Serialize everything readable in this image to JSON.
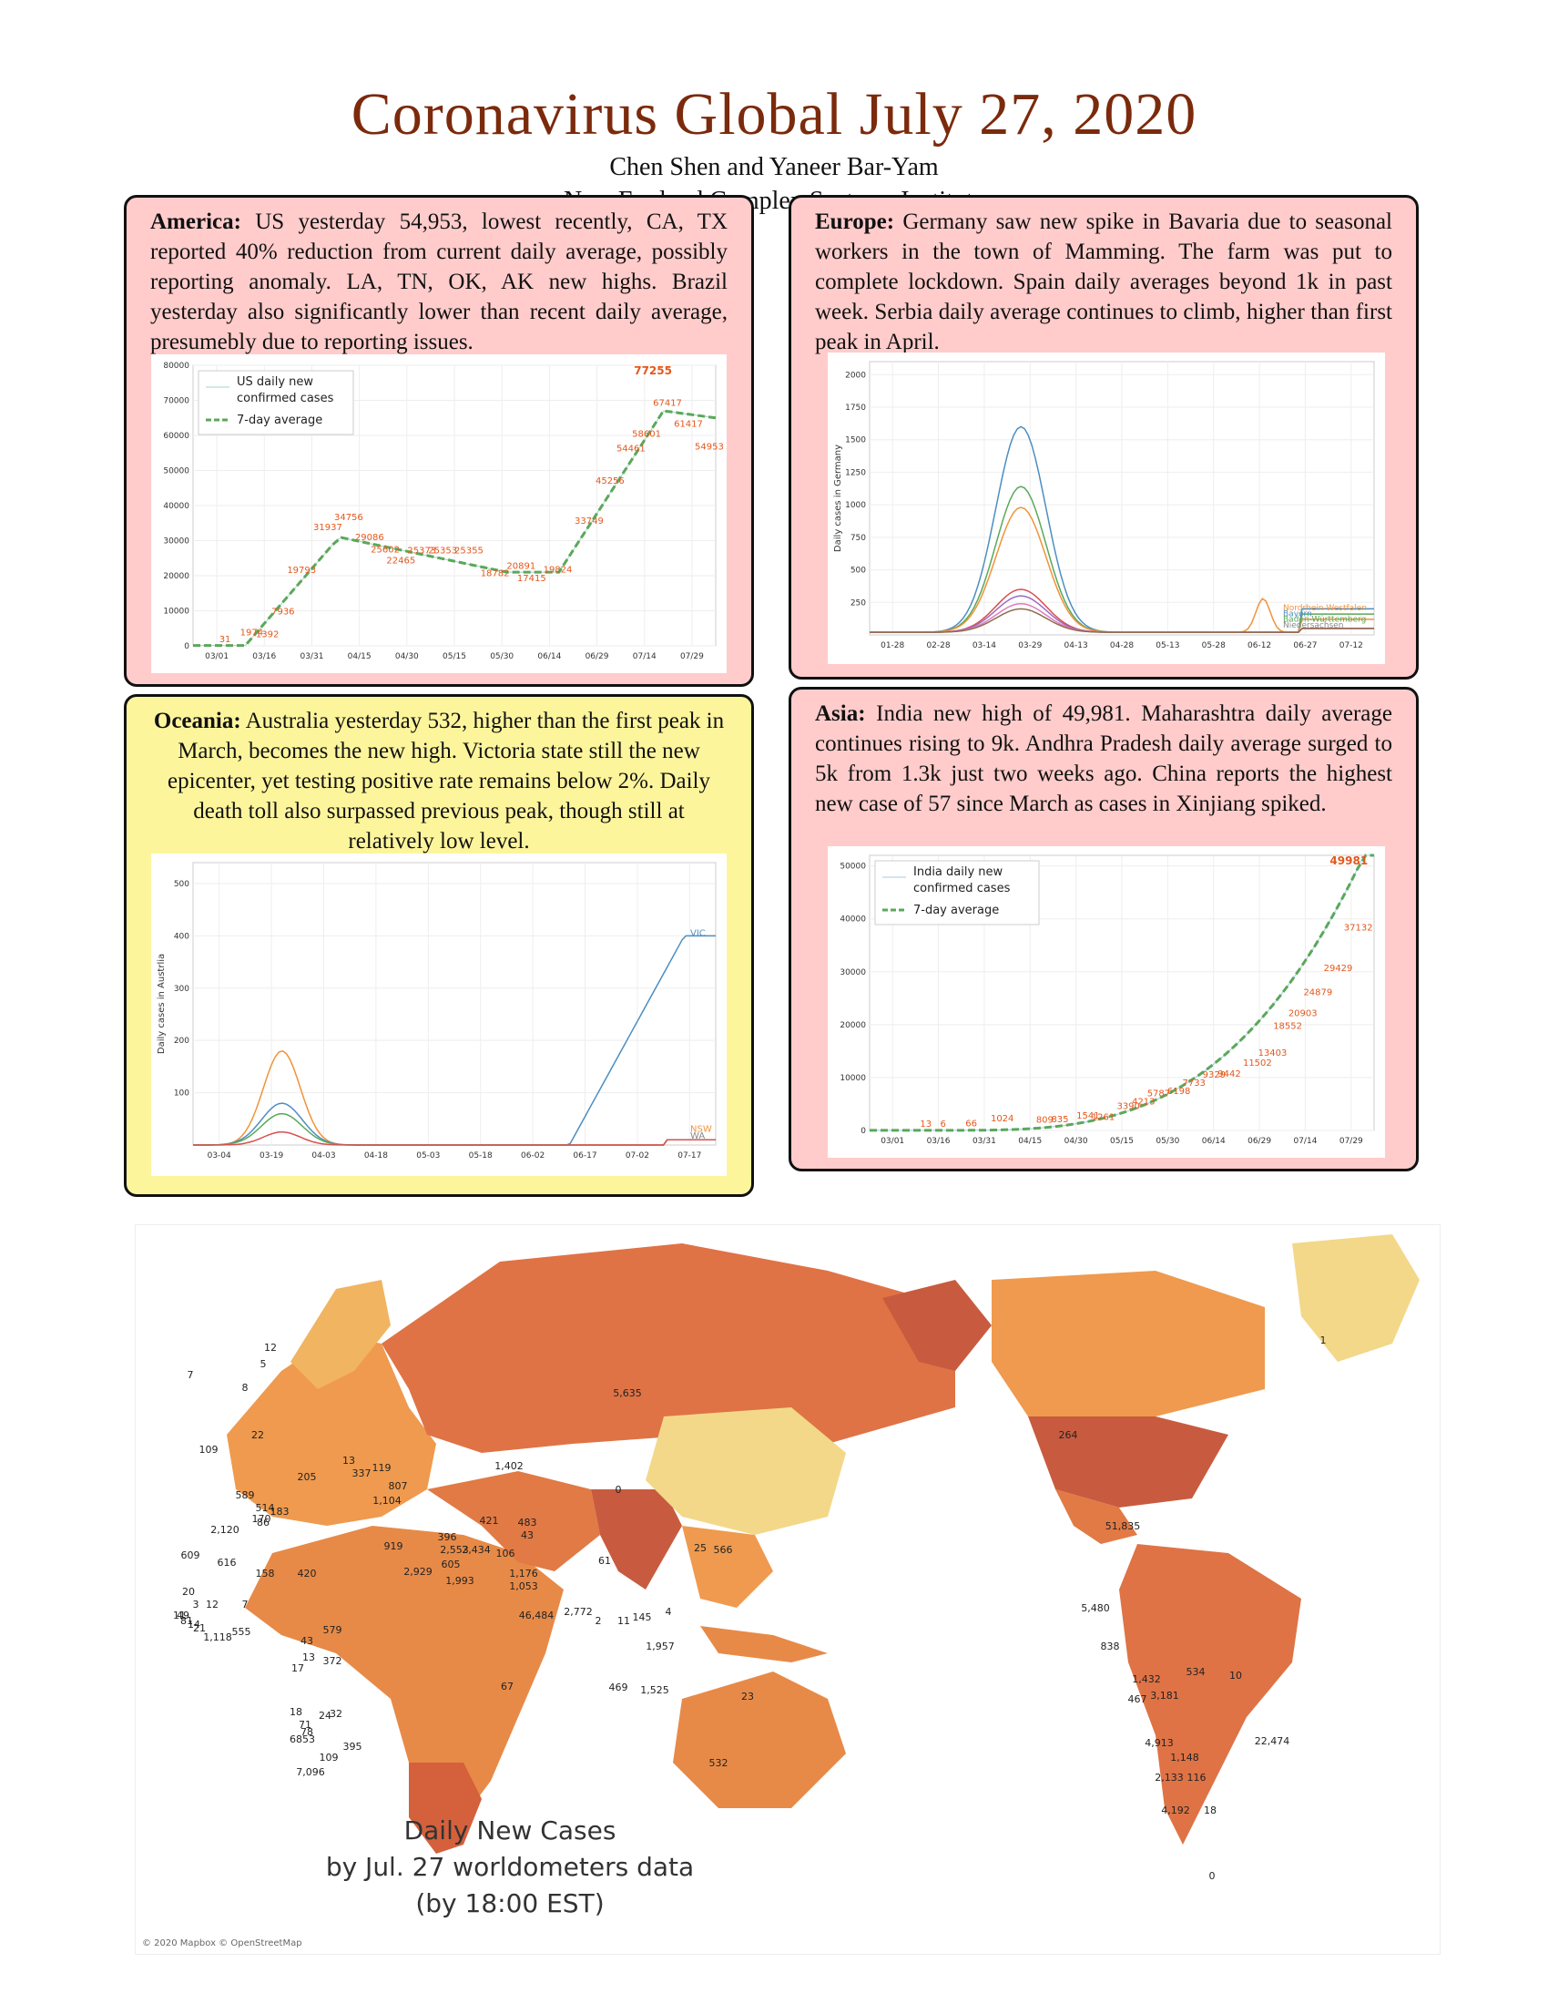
{
  "header": {
    "title": "Coronavirus Global July 27, 2020",
    "authors": "Chen Shen and Yaneer Bar-Yam",
    "institute": "New England Complex Systems Institute"
  },
  "america": {
    "heading": "America:",
    "text": "US yesterday 54,953, lowest recently, CA, TX reported 40% reduction from current daily average, possibly reporting anomaly. LA, TN, OK, AK new highs. Brazil yesterday also significantly lower than recent daily average, presumebly due to reporting issues."
  },
  "europe": {
    "heading": "Europe:",
    "text": "Germany saw new spike in Bavaria due to seasonal workers in the town of Mamming. The farm was put to complete lockdown. Spain daily averages beyond 1k in past week. Serbia daily average continues to climb, higher than first peak in April."
  },
  "oceania": {
    "heading": "Oceania:",
    "text": "Australia yesterday 532, higher than the first peak in March, becomes the new high. Victoria state still the new epicenter, yet testing positive rate remains below 2%. Daily death toll also surpassed previous peak, though still at relatively low level."
  },
  "asia": {
    "heading": "Asia:",
    "text": "India new high of 49,981. Maharashtra daily average continues rising to 9k. Andhra Pradesh daily average surged to 5k from 1.3k just two weeks ago. China reports the highest new case of 57 since March as cases in Xinjiang spiked."
  },
  "chart_data": [
    {
      "type": "line",
      "id": "us",
      "legend": [
        "US daily new confirmed cases",
        "7-day average"
      ],
      "x": [
        "03/01",
        "03/16",
        "03/31",
        "04/15",
        "04/30",
        "05/15",
        "05/30",
        "06/14",
        "06/29",
        "07/14",
        "07/29"
      ],
      "yticks": [
        0,
        10000,
        20000,
        30000,
        40000,
        50000,
        60000,
        70000,
        80000
      ],
      "ylim": [
        0,
        80000
      ],
      "peak_label": "77255",
      "annotations": [
        {
          "x": 0.05,
          "y": 31,
          "label": "31"
        },
        {
          "x": 0.09,
          "y": 1974,
          "label": "1974"
        },
        {
          "x": 0.12,
          "y": 1392,
          "label": "1392"
        },
        {
          "x": 0.15,
          "y": 7936,
          "label": "7936"
        },
        {
          "x": 0.18,
          "y": 19793,
          "label": "19793"
        },
        {
          "x": 0.23,
          "y": 31937,
          "label": "31937"
        },
        {
          "x": 0.27,
          "y": 34756,
          "label": "34756"
        },
        {
          "x": 0.31,
          "y": 29086,
          "label": "29086"
        },
        {
          "x": 0.34,
          "y": 25602,
          "label": "25602"
        },
        {
          "x": 0.37,
          "y": 22465,
          "label": "22465"
        },
        {
          "x": 0.41,
          "y": 25373,
          "label": "25373"
        },
        {
          "x": 0.45,
          "y": 25353,
          "label": "25353"
        },
        {
          "x": 0.5,
          "y": 25355,
          "label": "25355"
        },
        {
          "x": 0.55,
          "y": 18782,
          "label": "18782"
        },
        {
          "x": 0.6,
          "y": 20891,
          "label": "20891"
        },
        {
          "x": 0.62,
          "y": 17415,
          "label": "17415"
        },
        {
          "x": 0.67,
          "y": 19824,
          "label": "19824"
        },
        {
          "x": 0.73,
          "y": 33749,
          "label": "33749"
        },
        {
          "x": 0.77,
          "y": 45256,
          "label": "45256"
        },
        {
          "x": 0.81,
          "y": 54461,
          "label": "54461"
        },
        {
          "x": 0.84,
          "y": 58601,
          "label": "58601"
        },
        {
          "x": 0.88,
          "y": 67417,
          "label": "67417"
        },
        {
          "x": 0.92,
          "y": 61417,
          "label": "61417"
        },
        {
          "x": 0.96,
          "y": 54953,
          "label": "54953"
        }
      ]
    },
    {
      "type": "line",
      "id": "germany",
      "ylabel": "Daily cases in Germany",
      "x": [
        "01-28",
        "02-28",
        "03-14",
        "03-29",
        "04-13",
        "04-28",
        "05-13",
        "05-28",
        "06-12",
        "06-27",
        "07-12"
      ],
      "yticks": [
        250,
        500,
        750,
        1000,
        1250,
        1500,
        1750,
        2000
      ],
      "ylim": [
        0,
        2100
      ],
      "series_labels": [
        "Nordrhein-Westfalen",
        "Bayern",
        "Baden-Württemberg",
        "Niedersachsen"
      ]
    },
    {
      "type": "line",
      "id": "australia",
      "ylabel": "Daily cases in Austrlia",
      "x": [
        "03-04",
        "03-19",
        "04-03",
        "04-18",
        "05-03",
        "05-18",
        "06-02",
        "06-17",
        "07-02",
        "07-17"
      ],
      "yticks": [
        100,
        200,
        300,
        400,
        500
      ],
      "ylim": [
        0,
        540
      ],
      "series_labels": [
        "VIC",
        "NSW",
        "WA"
      ]
    },
    {
      "type": "line",
      "id": "india",
      "legend": [
        "India daily new confirmed cases",
        "7-day average"
      ],
      "x": [
        "03/01",
        "03/16",
        "03/31",
        "04/15",
        "04/30",
        "05/15",
        "05/30",
        "06/14",
        "06/29",
        "07/14",
        "07/29"
      ],
      "yticks": [
        0,
        10000,
        20000,
        30000,
        40000,
        50000
      ],
      "ylim": [
        0,
        52000
      ],
      "peak_label": "49981",
      "annotations": [
        {
          "x": 0.1,
          "y": 13,
          "label": "13"
        },
        {
          "x": 0.14,
          "y": 6,
          "label": "6"
        },
        {
          "x": 0.19,
          "y": 66,
          "label": "66"
        },
        {
          "x": 0.24,
          "y": 1024,
          "label": "1024"
        },
        {
          "x": 0.33,
          "y": 809,
          "label": "809"
        },
        {
          "x": 0.36,
          "y": 835,
          "label": "835"
        },
        {
          "x": 0.41,
          "y": 1541,
          "label": "1541"
        },
        {
          "x": 0.44,
          "y": 1261,
          "label": "1261"
        },
        {
          "x": 0.49,
          "y": 3390,
          "label": "3390"
        },
        {
          "x": 0.52,
          "y": 4213,
          "label": "4213"
        },
        {
          "x": 0.55,
          "y": 5787,
          "label": "5787"
        },
        {
          "x": 0.59,
          "y": 6198,
          "label": "6198"
        },
        {
          "x": 0.62,
          "y": 7733,
          "label": "7733"
        },
        {
          "x": 0.66,
          "y": 9329,
          "label": "9329"
        },
        {
          "x": 0.69,
          "y": 9442,
          "label": "9442"
        },
        {
          "x": 0.74,
          "y": 11502,
          "label": "11502"
        },
        {
          "x": 0.77,
          "y": 13403,
          "label": "13403"
        },
        {
          "x": 0.8,
          "y": 18552,
          "label": "18552"
        },
        {
          "x": 0.83,
          "y": 20903,
          "label": "20903"
        },
        {
          "x": 0.86,
          "y": 24879,
          "label": "24879"
        },
        {
          "x": 0.9,
          "y": 29429,
          "label": "29429"
        },
        {
          "x": 0.94,
          "y": 37132,
          "label": "37132"
        }
      ]
    }
  ],
  "map": {
    "legend_line1": "Daily New Cases",
    "legend_line2": "by Jul. 27 worldometers data",
    "legend_line3": "(by 18:00 EST)",
    "credit": "© 2020 Mapbox © OpenStreetMap",
    "colors": {
      "low": "#f3d889",
      "mid": "#ef9a4e",
      "high": "#e06c3c",
      "max": "#c85b3f"
    },
    "labels": [
      "5,635",
      "1,402",
      "0",
      "61",
      "25",
      "566",
      "46,484",
      "2,772",
      "2",
      "11",
      "145",
      "4",
      "1,957",
      "469",
      "1,525",
      "23",
      "67",
      "532",
      "264",
      "51,835",
      "5,480",
      "838",
      "1,432",
      "3,181",
      "467",
      "534",
      "10",
      "4,913",
      "1,148",
      "2,133",
      "116",
      "22,474",
      "4,192",
      "18",
      "0",
      "1",
      "421",
      "483",
      "43",
      "106",
      "1,176",
      "1,053",
      "2,553",
      "2,434",
      "605",
      "1,993",
      "2,929",
      "919",
      "396",
      "807",
      "1,104",
      "119",
      "13",
      "337",
      "205",
      "589",
      "514",
      "170",
      "183",
      "86",
      "2,120",
      "609",
      "616",
      "158",
      "420",
      "20",
      "3",
      "12",
      "7",
      "49",
      "14",
      "81",
      "1,118",
      "555",
      "43",
      "579",
      "13",
      "372",
      "17",
      "18",
      "71",
      "24",
      "32",
      "78",
      "68",
      "53",
      "109",
      "7,096",
      "395",
      "12",
      "5",
      "8",
      "7",
      "22",
      "109",
      "11",
      "21",
      "0"
    ]
  }
}
